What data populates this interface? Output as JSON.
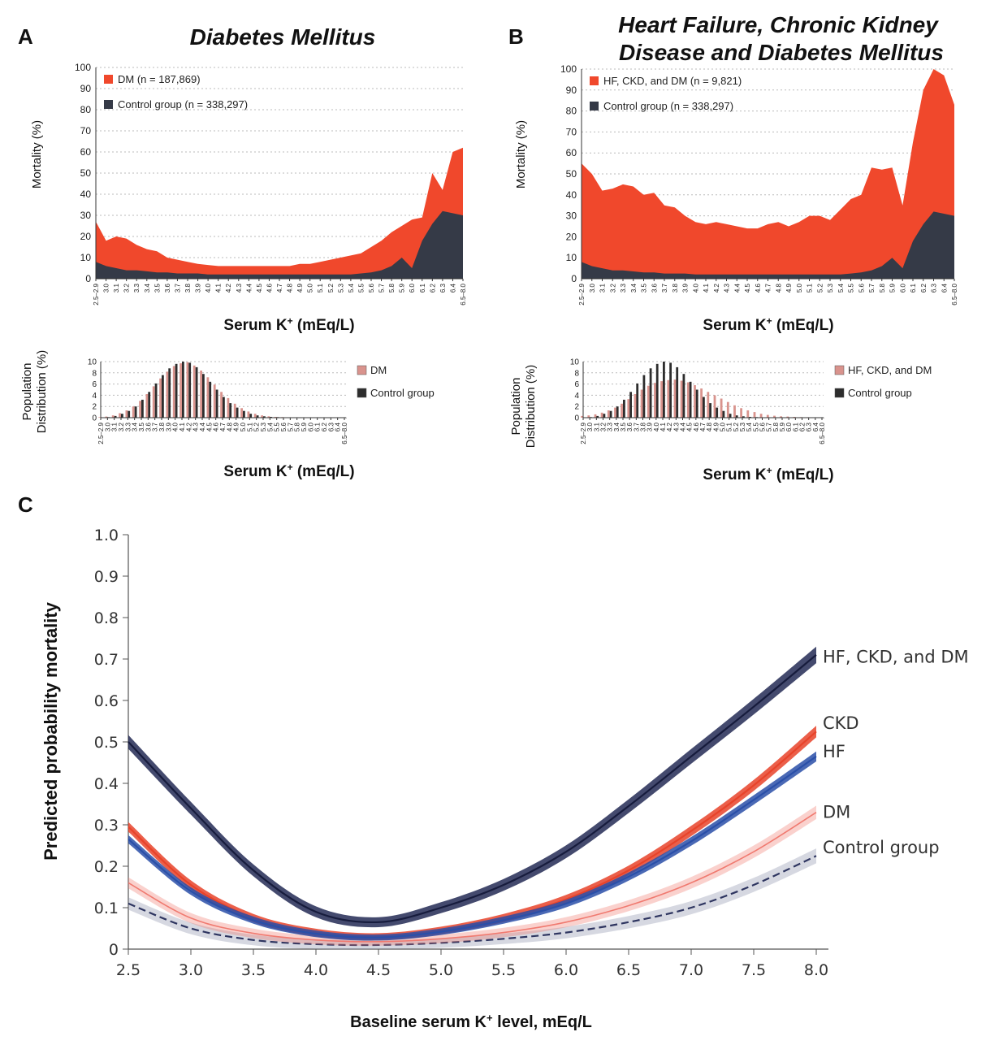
{
  "colors": {
    "red": "#f0482c",
    "dark": "#353a47",
    "bar_pink": "#d9938d",
    "bar_dark": "#2d2d2d",
    "navy": "#232a55",
    "hf_blue": "#2a4fa8",
    "ckd_red": "#e8432a",
    "dm_pink": "#f07a70",
    "control_gray": "#8a8fa8"
  },
  "chart_data": [
    {
      "id": "A-mortality",
      "type": "area",
      "panel_letter": "A",
      "title": "Diabetes Mellitus",
      "xlabel": "Serum K",
      "xlabel_sup": "+",
      "xlabel_unit": "(mEq/L)",
      "ylabel": "Mortality (%)",
      "ylim": [
        0,
        100
      ],
      "yticks": [
        0,
        10,
        20,
        30,
        40,
        50,
        60,
        70,
        80,
        90,
        100
      ],
      "grid": true,
      "legend_position": "top-left",
      "categories": [
        "2.5–2.9",
        "3.0",
        "3.1",
        "3.2",
        "3.3",
        "3.4",
        "3.5",
        "3.6",
        "3.7",
        "3.8",
        "3.9",
        "4.0",
        "4.1",
        "4.2",
        "4.3",
        "4.4",
        "4.5",
        "4.6",
        "4.7",
        "4.8",
        "4.9",
        "5.0",
        "5.1",
        "5.2",
        "5.3",
        "5.4",
        "5.5",
        "5.6",
        "5.7",
        "5.8",
        "5.9",
        "6.0",
        "6.1",
        "6.2",
        "6.3",
        "6.4",
        "6.5–8.0"
      ],
      "series": [
        {
          "name": "DM",
          "n_label": "(n = 187,869)",
          "color": "#f0482c",
          "values": [
            27,
            18,
            20,
            19,
            16,
            14,
            13,
            10,
            9,
            8,
            7,
            6.5,
            6,
            6,
            6,
            6,
            6,
            6,
            6,
            6,
            7,
            7,
            8,
            9,
            10,
            11,
            12,
            15,
            18,
            22,
            25,
            28,
            29,
            50,
            42,
            60,
            62
          ]
        },
        {
          "name": "Control group",
          "n_label": "(n = 338,297)",
          "color": "#353a47",
          "values": [
            8,
            6,
            5,
            4,
            4,
            3.5,
            3,
            3,
            2.5,
            2.5,
            2.5,
            2,
            2,
            2,
            2,
            2,
            2,
            2,
            2,
            2,
            2,
            2,
            2,
            2,
            2,
            2,
            2.5,
            3,
            4,
            6,
            10,
            5,
            18,
            26,
            32,
            31,
            30
          ]
        }
      ]
    },
    {
      "id": "A-distribution",
      "type": "bar",
      "xlabel": "Serum K",
      "xlabel_sup": "+",
      "xlabel_unit": "(mEq/L)",
      "ylabel_line1": "Population",
      "ylabel_line2": "Distribution (%)",
      "ylim": [
        0,
        10
      ],
      "yticks": [
        0,
        2,
        4,
        6,
        8,
        10
      ],
      "grid": true,
      "legend_position": "right",
      "categories": [
        "2.5–2.9",
        "3.0",
        "3.1",
        "3.2",
        "3.3",
        "3.4",
        "3.5",
        "3.6",
        "3.7",
        "3.8",
        "3.9",
        "4.0",
        "4.1",
        "4.2",
        "4.3",
        "4.4",
        "4.5",
        "4.6",
        "4.7",
        "4.8",
        "4.9",
        "5.0",
        "5.1",
        "5.2",
        "5.3",
        "5.4",
        "5.5",
        "5.6",
        "5.7",
        "5.8",
        "5.9",
        "6.0",
        "6.1",
        "6.2",
        "6.3",
        "6.4",
        "6.5–8.0"
      ],
      "series": [
        {
          "name": "DM",
          "color": "#d9938d",
          "values": [
            0.1,
            0.2,
            0.4,
            0.8,
            1.3,
            2.0,
            3.0,
            4.2,
            5.6,
            7.0,
            8.2,
            9.2,
            9.7,
            9.9,
            9.3,
            8.4,
            7.2,
            5.9,
            4.6,
            3.5,
            2.5,
            1.7,
            1.1,
            0.7,
            0.4,
            0.25,
            0.15,
            0.1,
            0.05,
            0.05,
            0.03,
            0.02,
            0.02,
            0.01,
            0.01,
            0.01,
            0.01
          ]
        },
        {
          "name": "Control group",
          "color": "#2d2d2d",
          "values": [
            0.05,
            0.1,
            0.3,
            0.7,
            1.2,
            2.0,
            3.2,
            4.6,
            6.1,
            7.6,
            8.8,
            9.6,
            10.0,
            9.8,
            9.0,
            7.8,
            6.4,
            5.0,
            3.7,
            2.6,
            1.8,
            1.2,
            0.7,
            0.4,
            0.25,
            0.15,
            0.1,
            0.05,
            0.03,
            0.02,
            0.02,
            0.01,
            0.01,
            0.01,
            0.01,
            0.01,
            0.01
          ]
        }
      ]
    },
    {
      "id": "B-mortality",
      "type": "area",
      "panel_letter": "B",
      "title_line1": "Heart Failure, Chronic Kidney",
      "title_line2": "Disease and Diabetes Mellitus",
      "xlabel": "Serum K",
      "xlabel_sup": "+",
      "xlabel_unit": "(mEq/L)",
      "ylabel": "Mortality (%)",
      "ylim": [
        0,
        100
      ],
      "yticks": [
        0,
        10,
        20,
        30,
        40,
        50,
        60,
        70,
        80,
        90,
        100
      ],
      "grid": true,
      "legend_position": "top-left",
      "categories": [
        "2.5–2.9",
        "3.0",
        "3.1",
        "3.2",
        "3.3",
        "3.4",
        "3.5",
        "3.6",
        "3.7",
        "3.8",
        "3.9",
        "4.0",
        "4.1",
        "4.2",
        "4.3",
        "4.4",
        "4.5",
        "4.6",
        "4.7",
        "4.8",
        "4.9",
        "5.0",
        "5.1",
        "5.2",
        "5.3",
        "5.4",
        "5.5",
        "5.6",
        "5.7",
        "5.8",
        "5.9",
        "6.0",
        "6.1",
        "6.2",
        "6.3",
        "6.4",
        "6.5–8.0"
      ],
      "series": [
        {
          "name": "HF, CKD, and DM",
          "n_label": "(n = 9,821)",
          "color": "#f0482c",
          "values": [
            55,
            50,
            42,
            43,
            45,
            44,
            40,
            41,
            35,
            34,
            30,
            27,
            26,
            27,
            26,
            25,
            24,
            24,
            26,
            27,
            25,
            27,
            30,
            30,
            28,
            33,
            38,
            40,
            53,
            52,
            53,
            35,
            65,
            90,
            100,
            97,
            83
          ]
        },
        {
          "name": "Control group",
          "n_label": "(n = 338,297)",
          "color": "#353a47",
          "values": [
            8,
            6,
            5,
            4,
            4,
            3.5,
            3,
            3,
            2.5,
            2.5,
            2.5,
            2,
            2,
            2,
            2,
            2,
            2,
            2,
            2,
            2,
            2,
            2,
            2,
            2,
            2,
            2,
            2.5,
            3,
            4,
            6,
            10,
            5,
            18,
            26,
            32,
            31,
            30
          ]
        }
      ]
    },
    {
      "id": "B-distribution",
      "type": "bar",
      "xlabel": "Serum K",
      "xlabel_sup": "+",
      "xlabel_unit": "(mEq/L)",
      "ylabel_line1": "Population",
      "ylabel_line2": "Distribution (%)",
      "ylim": [
        0,
        10
      ],
      "yticks": [
        0,
        2,
        4,
        6,
        8,
        10
      ],
      "grid": true,
      "legend_position": "right",
      "categories": [
        "2.5–2.9",
        "3.0",
        "3.1",
        "3.2",
        "3.3",
        "3.4",
        "3.5",
        "3.6",
        "3.7",
        "3.8",
        "3.9",
        "4.0",
        "4.1",
        "4.2",
        "4.3",
        "4.4",
        "4.5",
        "4.6",
        "4.7",
        "4.8",
        "4.9",
        "5.0",
        "5.1",
        "5.2",
        "5.3",
        "5.4",
        "5.5",
        "5.6",
        "5.7",
        "5.8",
        "5.9",
        "6.0",
        "6.1",
        "6.2",
        "6.3",
        "6.4",
        "6.5–8.0"
      ],
      "series": [
        {
          "name": "HF, CKD, and DM",
          "color": "#d9938d",
          "values": [
            0.3,
            0.4,
            0.6,
            0.9,
            1.3,
            1.8,
            2.5,
            3.3,
            4.2,
            5.0,
            5.7,
            6.2,
            6.5,
            6.7,
            6.8,
            6.6,
            6.3,
            5.8,
            5.2,
            4.6,
            4.0,
            3.4,
            2.8,
            2.2,
            1.7,
            1.3,
            1.0,
            0.7,
            0.5,
            0.35,
            0.25,
            0.2,
            0.15,
            0.1,
            0.08,
            0.06,
            0.05
          ]
        },
        {
          "name": "Control group",
          "color": "#2d2d2d",
          "values": [
            0.05,
            0.1,
            0.3,
            0.7,
            1.2,
            2.0,
            3.2,
            4.6,
            6.1,
            7.6,
            8.8,
            9.6,
            10.0,
            9.8,
            9.0,
            7.8,
            6.4,
            5.0,
            3.7,
            2.6,
            1.8,
            1.2,
            0.7,
            0.4,
            0.25,
            0.15,
            0.1,
            0.05,
            0.03,
            0.02,
            0.02,
            0.01,
            0.01,
            0.01,
            0.01,
            0.01,
            0.01
          ]
        }
      ]
    },
    {
      "id": "C-predicted",
      "type": "line",
      "panel_letter": "C",
      "xlabel": "Baseline serum K",
      "xlabel_sup": "+",
      "xlabel_unit": " level, mEq/L",
      "ylabel": "Predicted probability mortality",
      "xlim": [
        2.5,
        8.0
      ],
      "ylim": [
        0,
        1.0
      ],
      "xticks": [
        2.5,
        3.0,
        3.5,
        4.0,
        4.5,
        5.0,
        5.5,
        6.0,
        6.5,
        7.0,
        7.5,
        8.0
      ],
      "xtick_labels": [
        "2.5",
        "3.0",
        "3.5",
        "4.0",
        "4.5",
        "5.0",
        "5.5",
        "6.0",
        "6.5",
        "7.0",
        "7.5",
        "8.0"
      ],
      "yticks": [
        0,
        0.1,
        0.2,
        0.3,
        0.4,
        0.5,
        0.6,
        0.7,
        0.8,
        0.9,
        1.0
      ],
      "ytick_labels": [
        "0",
        "0.1",
        "0.2",
        "0.3",
        "0.4",
        "0.5",
        "0.6",
        "0.7",
        "0.8",
        "0.9",
        "1.0"
      ],
      "grid": false,
      "legend_position": "right end labels",
      "x": [
        2.5,
        3.0,
        3.5,
        4.0,
        4.5,
        5.0,
        5.5,
        6.0,
        6.5,
        7.0,
        7.5,
        8.0
      ],
      "series": [
        {
          "name": "HF, CKD, and DM",
          "color": "#232a55",
          "values": [
            0.5,
            0.34,
            0.19,
            0.09,
            0.065,
            0.1,
            0.155,
            0.235,
            0.345,
            0.465,
            0.585,
            0.71
          ],
          "band": 0.02
        },
        {
          "name": "CKD",
          "color": "#e8432a",
          "values": [
            0.295,
            0.155,
            0.075,
            0.04,
            0.03,
            0.045,
            0.075,
            0.12,
            0.19,
            0.285,
            0.395,
            0.525
          ],
          "band": 0.014
        },
        {
          "name": "HF",
          "color": "#2a4fa8",
          "values": [
            0.265,
            0.14,
            0.07,
            0.037,
            0.028,
            0.042,
            0.07,
            0.11,
            0.175,
            0.26,
            0.36,
            0.465
          ],
          "band": 0.012
        },
        {
          "name": "DM",
          "color": "#f07a70",
          "values": [
            0.16,
            0.075,
            0.038,
            0.022,
            0.018,
            0.025,
            0.04,
            0.065,
            0.105,
            0.16,
            0.235,
            0.33
          ],
          "band": 0.016
        },
        {
          "name": "Control group",
          "color": "#8a8fa8",
          "dashed": true,
          "values": [
            0.11,
            0.05,
            0.022,
            0.012,
            0.01,
            0.015,
            0.025,
            0.04,
            0.065,
            0.1,
            0.155,
            0.225
          ],
          "band": 0.018
        }
      ]
    }
  ]
}
